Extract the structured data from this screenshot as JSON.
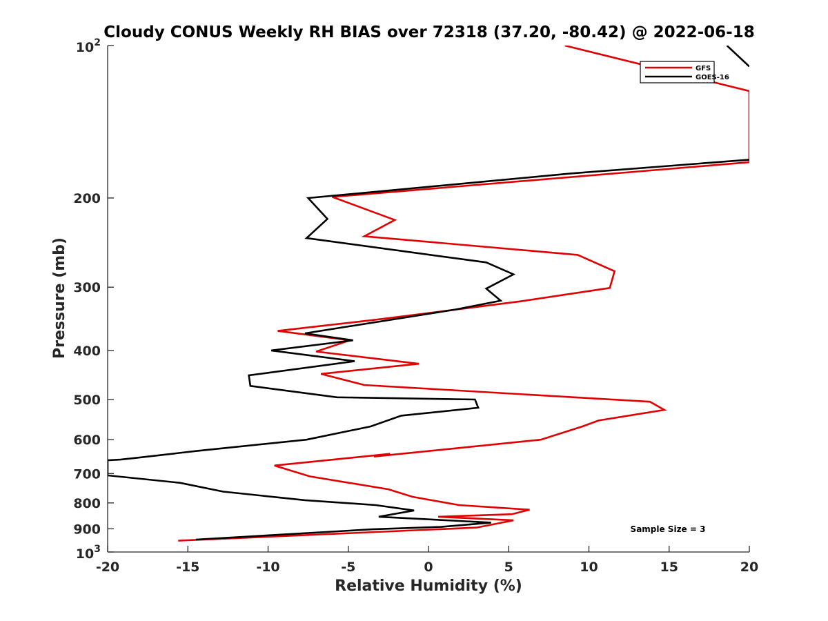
{
  "chart_data": {
    "type": "line",
    "title": "Cloudy CONUS Weekly RH BIAS over 72318 (37.20, -80.42) @ 2022-06-18",
    "xlabel": "Relative Humidity (%)",
    "ylabel": "Pressure (mb)",
    "xlim": [
      -20,
      20
    ],
    "ylim": [
      100,
      1000
    ],
    "yscale": "log",
    "yreversed": true,
    "x_ticks": [
      -20,
      -15,
      -10,
      -5,
      0,
      5,
      10,
      15,
      20
    ],
    "x_tick_labels": [
      "-20",
      "-15",
      "-10",
      "-5",
      "0",
      "5",
      "10",
      "15",
      "20"
    ],
    "y_ticks": [
      200,
      300,
      400,
      500,
      600,
      700,
      800,
      900
    ],
    "y_tick_labels": [
      "200",
      "300",
      "400",
      "500",
      "600",
      "700",
      "800",
      "900"
    ],
    "y_extreme_labels": {
      "top": {
        "base": "10",
        "exp": "2"
      },
      "bottom": {
        "base": "10",
        "exp": "3"
      }
    },
    "legend_position": "top-right",
    "annotation": "Sample Size = 3",
    "series": [
      {
        "name": "GFS",
        "color": "#e00000",
        "points": [
          [
            8.5,
            100
          ],
          [
            20,
            123
          ],
          [
            20,
            170
          ],
          [
            -6,
            199
          ],
          [
            -2.1,
            221
          ],
          [
            -4,
            238
          ],
          [
            9.3,
            259
          ],
          [
            11.6,
            279
          ],
          [
            11.3,
            301
          ],
          [
            5.7,
            320
          ],
          [
            -3,
            347
          ],
          [
            -9.4,
            366
          ],
          [
            -4.9,
            382
          ],
          [
            -7,
            402
          ],
          [
            -0.6,
            425
          ],
          [
            -6.7,
            445
          ],
          [
            -4,
            468
          ],
          [
            13.8,
            505
          ],
          [
            14.7,
            524
          ],
          [
            10.6,
            550
          ],
          [
            9.6,
            565
          ],
          [
            7,
            600
          ],
          [
            -3.4,
            648
          ],
          [
            -2.4,
            640
          ],
          [
            -9.6,
            675
          ],
          [
            -7.4,
            709
          ],
          [
            -2.5,
            752
          ],
          [
            -1,
            778
          ],
          [
            1.9,
            808
          ],
          [
            6.3,
            825
          ],
          [
            5.2,
            842
          ],
          [
            0.6,
            852
          ],
          [
            5.3,
            866
          ],
          [
            3,
            895
          ],
          [
            -15.6,
            950
          ]
        ]
      },
      {
        "name": "GOES-16",
        "color": "#000000",
        "points": [
          [
            20,
            168
          ],
          [
            8.8,
            179
          ],
          [
            -7.5,
            200
          ],
          [
            -6.3,
            220
          ],
          [
            -7.6,
            240
          ],
          [
            3.6,
            268
          ],
          [
            5.3,
            283
          ],
          [
            3.6,
            302
          ],
          [
            4.5,
            319
          ],
          [
            1.7,
            332
          ],
          [
            -7.7,
            370
          ],
          [
            -4.7,
            382
          ],
          [
            -9.8,
            400
          ],
          [
            -4.6,
            420
          ],
          [
            -11.2,
            448
          ],
          [
            -11.1,
            470
          ],
          [
            -5.7,
            495
          ],
          [
            2.9,
            500
          ],
          [
            3.1,
            519
          ],
          [
            -1.7,
            538
          ],
          [
            -3.6,
            565
          ],
          [
            -7.6,
            600
          ],
          [
            -14.5,
            632
          ],
          [
            -18.4,
            653
          ],
          [
            -19.2,
            657
          ],
          [
            -20,
            659
          ],
          [
            -20,
            706
          ],
          [
            -15.5,
            730
          ],
          [
            -12.8,
            760
          ],
          [
            -7.7,
            790
          ],
          [
            -3.3,
            808
          ],
          [
            -0.9,
            828
          ],
          [
            -3.1,
            852
          ],
          [
            1.5,
            867
          ],
          [
            3.9,
            875
          ],
          [
            0.8,
            892
          ],
          [
            -3.5,
            902
          ],
          [
            -14.5,
            945
          ]
        ]
      },
      {
        "name": "",
        "color": "#000000",
        "points": [
          [
            18.6,
            100
          ],
          [
            20,
            110
          ]
        ]
      }
    ]
  }
}
